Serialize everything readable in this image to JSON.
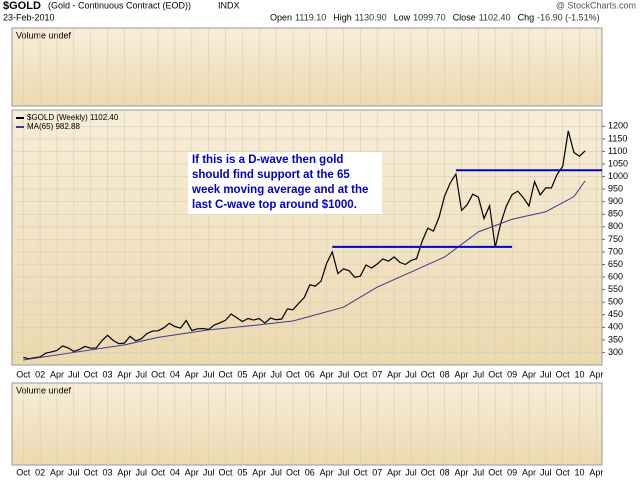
{
  "header": {
    "symbol": "$GOLD",
    "description": "(Gold - Continuous Contract (EOD))",
    "exchange": "INDX",
    "date": "23-Feb-2010",
    "source": "@ StockCharts.com",
    "quote": [
      {
        "label": "Open",
        "value": "1119.10"
      },
      {
        "label": "High",
        "value": "1130.90"
      },
      {
        "label": "Low",
        "value": "1099.70"
      },
      {
        "label": "Close",
        "value": "1102.40"
      },
      {
        "label": "Chg",
        "value": "-16.90 (-1.51%)"
      }
    ]
  },
  "volume_labels": [
    "Volume undef",
    "Volume undef"
  ],
  "chart_data": {
    "type": "line",
    "annotation": [
      "If this is a D-wave then gold",
      "should find support at the 65",
      "week moving average and at the",
      "last C-wave top around $1000."
    ],
    "xlim": [
      "2001-08",
      "2010-05"
    ],
    "ylim": [
      250,
      1265
    ],
    "yticks": [
      300,
      350,
      400,
      450,
      500,
      550,
      600,
      650,
      700,
      750,
      800,
      850,
      900,
      950,
      1000,
      1050,
      1100,
      1150,
      1200
    ],
    "xticks": [
      {
        "value": "2001-10",
        "label": "Oct"
      },
      {
        "value": "2002-01",
        "label": "02"
      },
      {
        "value": "2002-04",
        "label": "Apr"
      },
      {
        "value": "2002-07",
        "label": "Jul"
      },
      {
        "value": "2002-10",
        "label": "Oct"
      },
      {
        "value": "2003-01",
        "label": "03"
      },
      {
        "value": "2003-04",
        "label": "Apr"
      },
      {
        "value": "2003-07",
        "label": "Jul"
      },
      {
        "value": "2003-10",
        "label": "Oct"
      },
      {
        "value": "2004-01",
        "label": "04"
      },
      {
        "value": "2004-04",
        "label": "Apr"
      },
      {
        "value": "2004-07",
        "label": "Jul"
      },
      {
        "value": "2004-10",
        "label": "Oct"
      },
      {
        "value": "2005-01",
        "label": "05"
      },
      {
        "value": "2005-04",
        "label": "Apr"
      },
      {
        "value": "2005-07",
        "label": "Jul"
      },
      {
        "value": "2005-10",
        "label": "Oct"
      },
      {
        "value": "2006-01",
        "label": "06"
      },
      {
        "value": "2006-04",
        "label": "Apr"
      },
      {
        "value": "2006-07",
        "label": "Jul"
      },
      {
        "value": "2006-10",
        "label": "Oct"
      },
      {
        "value": "2007-01",
        "label": "07"
      },
      {
        "value": "2007-04",
        "label": "Apr"
      },
      {
        "value": "2007-07",
        "label": "Jul"
      },
      {
        "value": "2007-10",
        "label": "Oct"
      },
      {
        "value": "2008-01",
        "label": "08"
      },
      {
        "value": "2008-04",
        "label": "Apr"
      },
      {
        "value": "2008-07",
        "label": "Jul"
      },
      {
        "value": "2008-10",
        "label": "Oct"
      },
      {
        "value": "2009-01",
        "label": "09"
      },
      {
        "value": "2009-04",
        "label": "Apr"
      },
      {
        "value": "2009-07",
        "label": "Jul"
      },
      {
        "value": "2009-10",
        "label": "Oct"
      },
      {
        "value": "2010-01",
        "label": "10"
      },
      {
        "value": "2010-04",
        "label": "Apr"
      }
    ],
    "grid": true,
    "series": [
      {
        "name": "$GOLD (Weekly) 1102.40",
        "color": "#000000",
        "x": [
          "2001-10",
          "2001-11",
          "2001-12",
          "2002-01",
          "2002-02",
          "2002-03",
          "2002-04",
          "2002-05",
          "2002-06",
          "2002-07",
          "2002-08",
          "2002-09",
          "2002-10",
          "2002-11",
          "2002-12",
          "2003-01",
          "2003-02",
          "2003-03",
          "2003-04",
          "2003-05",
          "2003-06",
          "2003-07",
          "2003-08",
          "2003-09",
          "2003-10",
          "2003-11",
          "2003-12",
          "2004-01",
          "2004-02",
          "2004-03",
          "2004-04",
          "2004-05",
          "2004-06",
          "2004-07",
          "2004-08",
          "2004-09",
          "2004-10",
          "2004-11",
          "2004-12",
          "2005-01",
          "2005-02",
          "2005-03",
          "2005-04",
          "2005-05",
          "2005-06",
          "2005-07",
          "2005-08",
          "2005-09",
          "2005-10",
          "2005-11",
          "2005-12",
          "2006-01",
          "2006-02",
          "2006-03",
          "2006-04",
          "2006-05",
          "2006-06",
          "2006-07",
          "2006-08",
          "2006-09",
          "2006-10",
          "2006-11",
          "2006-12",
          "2007-01",
          "2007-02",
          "2007-03",
          "2007-04",
          "2007-05",
          "2007-06",
          "2007-07",
          "2007-08",
          "2007-09",
          "2007-10",
          "2007-11",
          "2007-12",
          "2008-01",
          "2008-02",
          "2008-03",
          "2008-04",
          "2008-05",
          "2008-06",
          "2008-07",
          "2008-08",
          "2008-09",
          "2008-10",
          "2008-11",
          "2008-12",
          "2009-01",
          "2009-02",
          "2009-03",
          "2009-04",
          "2009-05",
          "2009-06",
          "2009-07",
          "2009-08",
          "2009-09",
          "2009-10",
          "2009-11",
          "2009-12",
          "2010-01",
          "2010-02"
        ],
        "values": [
          280,
          275,
          279,
          282,
          297,
          302,
          308,
          326,
          318,
          304,
          312,
          324,
          317,
          318,
          347,
          368,
          348,
          335,
          337,
          364,
          346,
          354,
          375,
          385,
          386,
          398,
          416,
          403,
          397,
          427,
          387,
          394,
          395,
          392,
          409,
          418,
          428,
          453,
          438,
          423,
          435,
          429,
          435,
          417,
          437,
          430,
          433,
          473,
          470,
          495,
          518,
          569,
          564,
          584,
          655,
          700,
          614,
          633,
          625,
          599,
          604,
          648,
          636,
          652,
          672,
          663,
          680,
          659,
          650,
          666,
          673,
          743,
          795,
          783,
          838,
          923,
          975,
          1010,
          865,
          888,
          930,
          918,
          833,
          884,
          718,
          816,
          884,
          928,
          942,
          916,
          883,
          980,
          927,
          955,
          955,
          1008,
          1040,
          1182,
          1096,
          1081,
          1102.4
        ]
      },
      {
        "name": "MA(65) 982.88",
        "color": "#3b3b8f",
        "x": [
          "2001-10",
          "2002-07",
          "2003-04",
          "2003-10",
          "2004-07",
          "2005-04",
          "2005-10",
          "2006-07",
          "2007-01",
          "2007-07",
          "2008-01",
          "2008-07",
          "2009-01",
          "2009-07",
          "2009-12",
          "2010-02"
        ],
        "values": [
          270,
          300,
          330,
          360,
          390,
          410,
          425,
          480,
          560,
          620,
          680,
          780,
          830,
          860,
          920,
          982.88
        ]
      }
    ],
    "lines": [
      {
        "y": 720,
        "x": [
          "2006-05",
          "2009-01"
        ],
        "color": "#0000cc"
      },
      {
        "y": 1025,
        "x": [
          "2008-03",
          "2010-05"
        ],
        "color": "#0000cc"
      }
    ]
  }
}
